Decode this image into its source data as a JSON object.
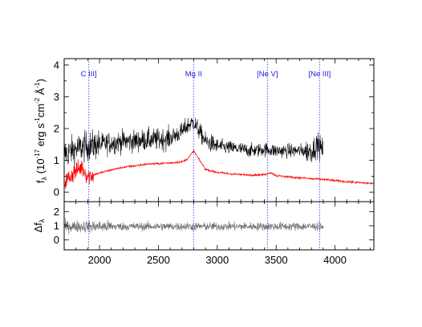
{
  "chart_data": [
    {
      "type": "line",
      "panel": "top",
      "ylabel_main": "f",
      "ylabel_sub": "λ",
      "ylabel_units": "(10",
      "ylabel_exp1": "-17",
      "ylabel_mid": " erg s",
      "ylabel_exp2": "-1",
      "ylabel_cm": "cm",
      "ylabel_exp3": "-2",
      "ylabel_ang": " Å",
      "ylabel_exp4": "-1",
      "ylabel_close": ")",
      "xlim": [
        1700,
        4330
      ],
      "ylim": [
        -0.3,
        4.2
      ],
      "yticks": [
        0,
        1,
        2,
        3,
        4
      ],
      "yticklabels": [
        "0",
        "1",
        "2",
        "3",
        "4"
      ],
      "series": [
        {
          "color": "#000000",
          "x_range": [
            1700,
            3900
          ],
          "envelope": {
            "x": [
              1700,
              1800,
              1900,
              2000,
              2100,
              2200,
              2300,
              2400,
              2500,
              2600,
              2700,
              2750,
              2800,
              2850,
              2900,
              3000,
              3100,
              3200,
              3300,
              3400,
              3500,
              3600,
              3700,
              3800,
              3850,
              3900
            ],
            "y": [
              1.2,
              1.35,
              1.45,
              1.5,
              1.55,
              1.6,
              1.6,
              1.65,
              1.65,
              1.7,
              1.9,
              2.1,
              2.2,
              1.9,
              1.6,
              1.45,
              1.4,
              1.35,
              1.3,
              1.35,
              1.3,
              1.3,
              1.3,
              1.3,
              1.5,
              1.3
            ]
          }
        },
        {
          "color": "#ff0000",
          "x_range": [
            1700,
            4330
          ],
          "envelope": {
            "x": [
              1700,
              1780,
              1850,
              1900,
              1950,
              2000,
              2100,
              2200,
              2300,
              2400,
              2500,
              2600,
              2700,
              2750,
              2800,
              2850,
              2900,
              3000,
              3100,
              3200,
              3300,
              3400,
              3450,
              3500,
              3600,
              3700,
              3800,
              3900,
              4000,
              4100,
              4200,
              4330
            ],
            "y": [
              0.3,
              0.6,
              0.8,
              0.5,
              0.55,
              0.6,
              0.7,
              0.78,
              0.83,
              0.88,
              0.9,
              0.92,
              0.95,
              1.05,
              1.3,
              1.0,
              0.72,
              0.62,
              0.58,
              0.55,
              0.54,
              0.55,
              0.62,
              0.52,
              0.48,
              0.45,
              0.42,
              0.4,
              0.36,
              0.33,
              0.3,
              0.27
            ]
          }
        }
      ]
    },
    {
      "type": "line",
      "panel": "bottom",
      "ylabel_main": "Δf",
      "ylabel_sub": "λ",
      "xlim": [
        1700,
        4330
      ],
      "ylim": [
        -0.7,
        2.7
      ],
      "yticks": [
        0,
        1,
        2
      ],
      "yticklabels": [
        "0",
        "1",
        "2"
      ],
      "xticks": [
        2000,
        2500,
        3000,
        3500,
        4000
      ],
      "xticklabels": [
        "2000",
        "2500",
        "3000",
        "3500",
        "4000"
      ],
      "series": [
        {
          "color": "#666666",
          "x_range": [
            1700,
            3900
          ],
          "mean": 0.95
        }
      ]
    }
  ],
  "emission_lines": [
    {
      "label": "C III]",
      "x": 1909
    },
    {
      "label": "Mg II",
      "x": 2799
    },
    {
      "label": "[Ne V]",
      "x": 3426
    },
    {
      "label": "[Ne III]",
      "x": 3869
    }
  ]
}
